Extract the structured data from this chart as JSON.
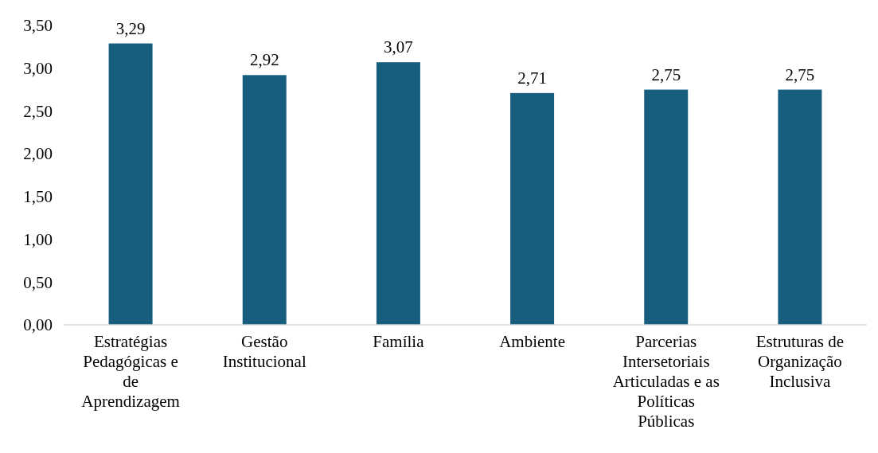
{
  "chart_data": {
    "type": "bar",
    "categories": [
      "Estratégias Pedagógicas e de Aprendizagem",
      "Gestão Institucional",
      "Família",
      "Ambiente",
      "Parcerias Intersetoriais Articuladas e as Políticas Públicas",
      "Estruturas de Organização Inclusiva"
    ],
    "values": [
      3.29,
      2.92,
      3.07,
      2.71,
      2.75,
      2.75
    ],
    "value_labels": [
      "3,29",
      "2,92",
      "3,07",
      "2,71",
      "2,75",
      "2,75"
    ],
    "color": "#175e7e",
    "ylim": [
      0,
      3.5
    ],
    "yticks": [
      {
        "value": 0,
        "label": "0,00"
      },
      {
        "value": 0.5,
        "label": "0,50"
      },
      {
        "value": 1,
        "label": "1,00"
      },
      {
        "value": 1.5,
        "label": "1,50"
      },
      {
        "value": 2,
        "label": "2,00"
      },
      {
        "value": 2.5,
        "label": "2,50"
      },
      {
        "value": 3,
        "label": "3,00"
      },
      {
        "value": 3.5,
        "label": "3,50"
      }
    ],
    "grid": false
  }
}
